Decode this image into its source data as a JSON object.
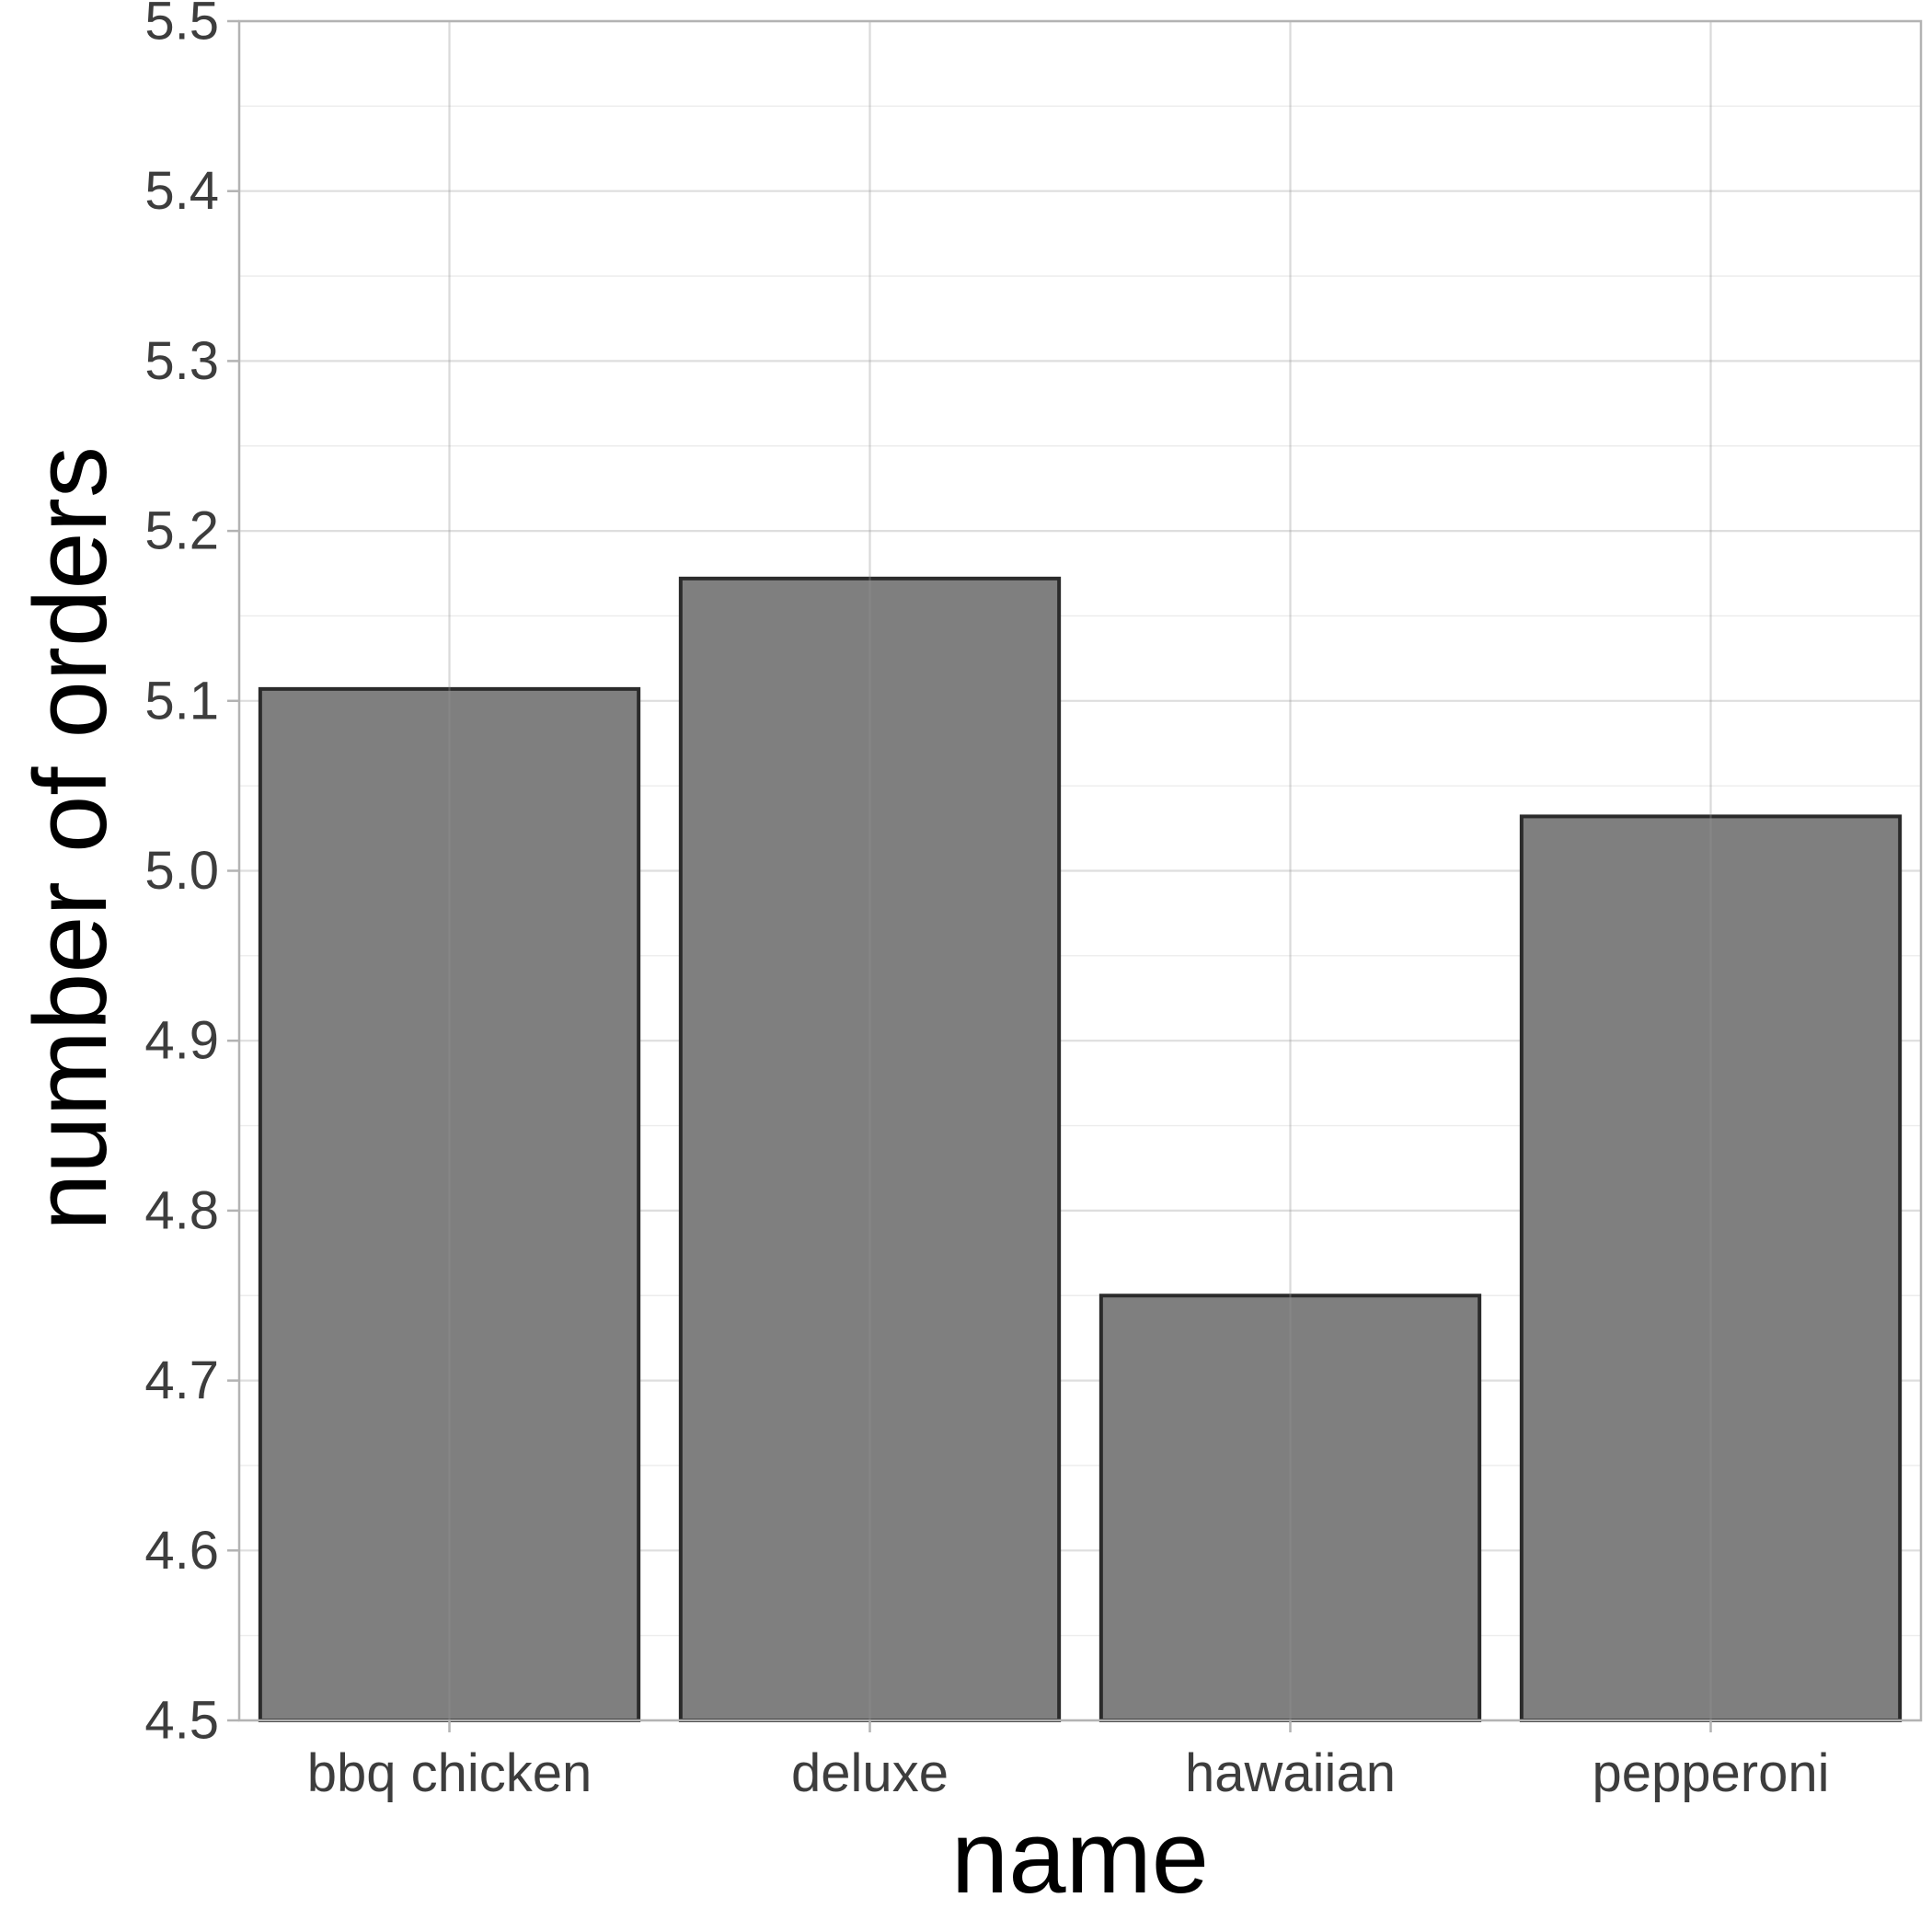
{
  "chart_data": {
    "type": "bar",
    "categories": [
      "bbq chicken",
      "deluxe",
      "hawaiian",
      "pepperoni"
    ],
    "values": [
      5.107,
      5.172,
      4.75,
      5.032
    ],
    "xlabel": "name",
    "ylabel": "number of orders",
    "ylim": [
      4.5,
      5.5
    ],
    "yticks": [
      "4.5",
      "4.6",
      "4.7",
      "4.8",
      "4.9",
      "5.0",
      "5.1",
      "5.2",
      "5.3",
      "5.4",
      "5.5"
    ],
    "grid": true,
    "legend": "none",
    "colors": {
      "bar_fill": "#7f7f7f",
      "bar_stroke": "#2b2b2b",
      "grid": "#dedede",
      "panel_border": "#b3b3b3"
    }
  }
}
